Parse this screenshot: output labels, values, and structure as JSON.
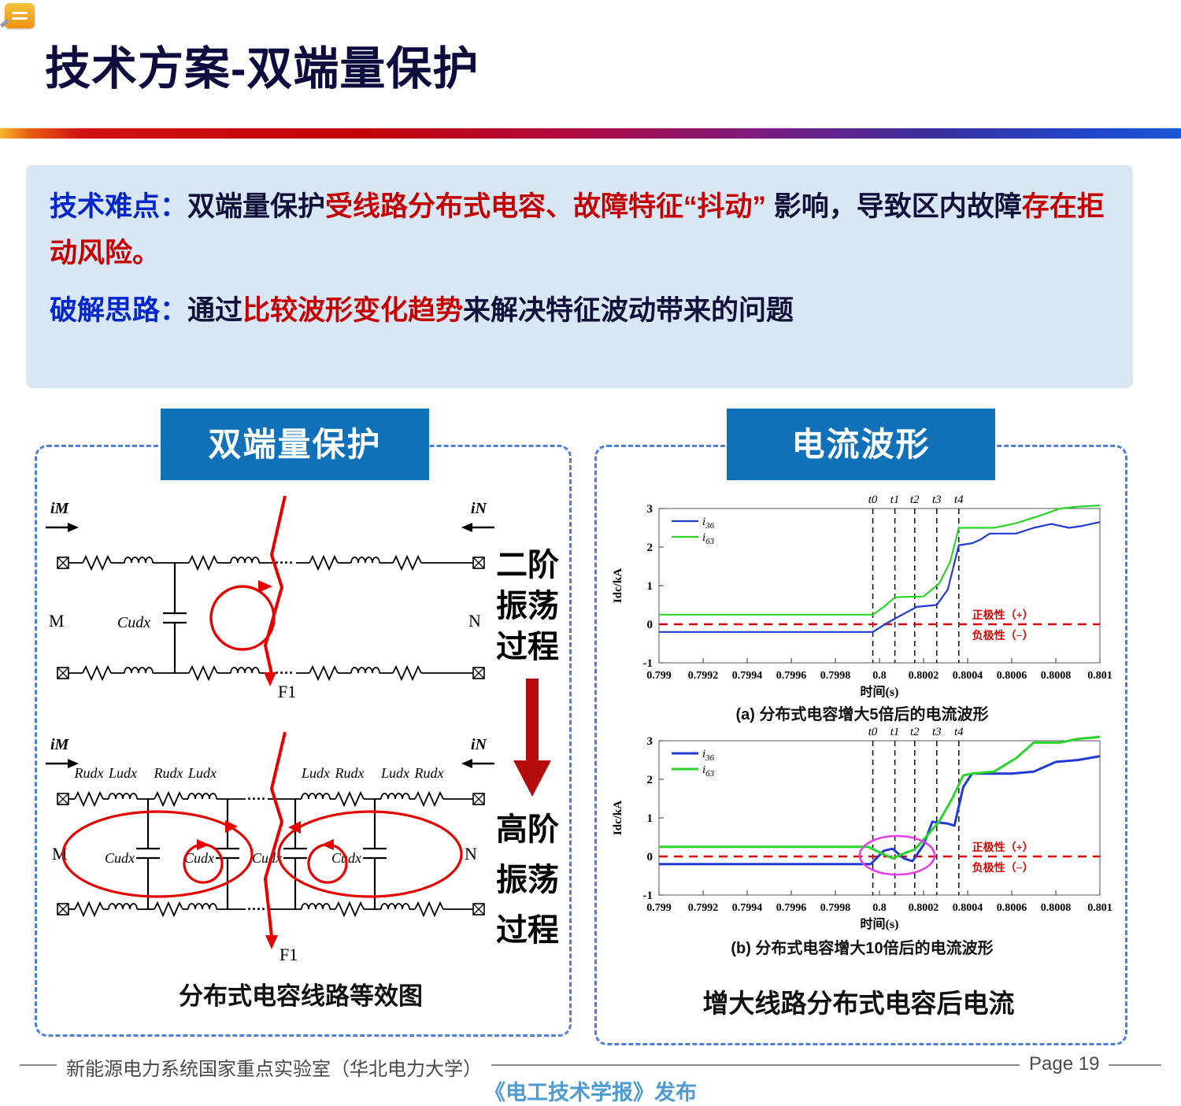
{
  "page": {
    "title": "技术方案-双端量保护",
    "footer": {
      "left": "新能源电力系统国家重点实验室（华北电力大学）",
      "right": "Page 19",
      "center": "《电工技术学报》发布"
    }
  },
  "summary": {
    "p1_label": "技术难点：",
    "p1_dark1": "双端量保护",
    "p1_red1": "受线路分布式电容、故障特征“抖动”",
    "p1_dark2": " 影响，导致区内故障",
    "p1_red2": "存在拒动风险。",
    "p2_label": "破解思路：",
    "p2_dark1": "通过",
    "p2_red1": "比较波形变化趋势",
    "p2_dark2": "来解决特征波动带来的问题"
  },
  "circuit_panel": {
    "header": "双端量保护",
    "caption": "分布式电容线路等效图",
    "stage1": [
      "二阶",
      "振荡",
      "过程"
    ],
    "stage2": [
      "高阶",
      "振荡",
      "过程"
    ],
    "labels": {
      "iM": "iM",
      "iN": "iN",
      "M": "M",
      "N": "N",
      "Cudx": "Cudx",
      "Rudx": "Rudx",
      "Ludx": "Ludx",
      "F1": "F1",
      "dots": "····"
    }
  },
  "waveform_panel": {
    "header": "电流波形",
    "caption": "增大线路分布式电容后电流"
  },
  "chart_data": [
    {
      "type": "line",
      "caption": "(a) 分布式电容增大5倍后的电流波形",
      "xlabel": "时间(s)",
      "ylabel": "Idc/kA",
      "xlim": [
        0.799,
        0.801
      ],
      "ylim": [
        -1,
        3
      ],
      "xticks": [
        "0.799",
        "0.7992",
        "0.7994",
        "0.7996",
        "0.7998",
        "0.8",
        "0.8002",
        "0.8004",
        "0.8006",
        "0.8008",
        "0.801"
      ],
      "yticks": [
        "-1",
        "0",
        "1",
        "2",
        "3"
      ],
      "t_labels": [
        "t0",
        "t1",
        "t2",
        "t3",
        "t4"
      ],
      "t_x": [
        0.79997,
        0.80007,
        0.80016,
        0.80026,
        0.80036
      ],
      "zero_label_pos": "正极性（+）",
      "zero_label_neg": "负极性（−）",
      "zero_label_x": 0.80042,
      "line_width": 2.2,
      "legend_position": "top-left",
      "grid": false,
      "series": [
        {
          "name": "i36",
          "color": "#1f3bd4",
          "points": [
            [
              0.799,
              -0.2
            ],
            [
              0.79997,
              -0.2
            ],
            [
              0.80004,
              0.05
            ],
            [
              0.80012,
              0.3
            ],
            [
              0.80017,
              0.45
            ],
            [
              0.80026,
              0.5
            ],
            [
              0.80031,
              0.9
            ],
            [
              0.80036,
              2.05
            ],
            [
              0.80042,
              2.1
            ],
            [
              0.80046,
              2.2
            ],
            [
              0.8005,
              2.35
            ],
            [
              0.80062,
              2.35
            ],
            [
              0.8007,
              2.5
            ],
            [
              0.80078,
              2.6
            ],
            [
              0.80086,
              2.5
            ],
            [
              0.80092,
              2.55
            ],
            [
              0.801,
              2.65
            ]
          ]
        },
        {
          "name": "i63",
          "color": "#2bd42b",
          "points": [
            [
              0.799,
              0.25
            ],
            [
              0.79997,
              0.25
            ],
            [
              0.80002,
              0.45
            ],
            [
              0.80007,
              0.7
            ],
            [
              0.8002,
              0.72
            ],
            [
              0.80027,
              1.05
            ],
            [
              0.80032,
              1.6
            ],
            [
              0.80036,
              2.5
            ],
            [
              0.80052,
              2.5
            ],
            [
              0.80062,
              2.62
            ],
            [
              0.80072,
              2.8
            ],
            [
              0.80082,
              3.0
            ],
            [
              0.8009,
              3.05
            ],
            [
              0.801,
              3.08
            ]
          ]
        }
      ]
    },
    {
      "type": "line",
      "caption": "(b) 分布式电容增大10倍后的电流波形",
      "xlabel": "时间(s)",
      "ylabel": "Idc/kA",
      "xlim": [
        0.799,
        0.801
      ],
      "ylim": [
        -1,
        3
      ],
      "xticks": [
        "0.799",
        "0.7992",
        "0.7994",
        "0.7996",
        "0.7998",
        "0.8",
        "0.8002",
        "0.8004",
        "0.8006",
        "0.8008",
        "0.801"
      ],
      "yticks": [
        "-1",
        "0",
        "1",
        "2",
        "3"
      ],
      "t_labels": [
        "t0",
        "t1",
        "t2",
        "t3",
        "t4"
      ],
      "t_x": [
        0.79997,
        0.80007,
        0.80016,
        0.80026,
        0.80036
      ],
      "zero_label_pos": "正极性（+）",
      "zero_label_neg": "负极性（−）",
      "zero_label_x": 0.80042,
      "line_width": 3,
      "legend_position": "top-left",
      "grid": false,
      "highlight_ellipse": {
        "cx": 0.80008,
        "cy": 0.03,
        "rx": 0.00017,
        "ry": 0.5,
        "color": "#e83ce8"
      },
      "series": [
        {
          "name": "i36",
          "color": "#1f3bd4",
          "points": [
            [
              0.799,
              -0.2
            ],
            [
              0.79996,
              -0.2
            ],
            [
              0.80002,
              0.15
            ],
            [
              0.80006,
              0.2
            ],
            [
              0.80011,
              -0.05
            ],
            [
              0.80015,
              -0.12
            ],
            [
              0.8002,
              0.3
            ],
            [
              0.80024,
              0.9
            ],
            [
              0.80031,
              0.85
            ],
            [
              0.80034,
              0.8
            ],
            [
              0.80038,
              1.8
            ],
            [
              0.80042,
              2.15
            ],
            [
              0.8006,
              2.15
            ],
            [
              0.8007,
              2.2
            ],
            [
              0.8008,
              2.45
            ],
            [
              0.8009,
              2.5
            ],
            [
              0.801,
              2.6
            ]
          ]
        },
        {
          "name": "i63",
          "color": "#2bd42b",
          "points": [
            [
              0.799,
              0.25
            ],
            [
              0.79995,
              0.25
            ],
            [
              0.80001,
              0.08
            ],
            [
              0.80006,
              -0.05
            ],
            [
              0.80012,
              0.1
            ],
            [
              0.80016,
              0.18
            ],
            [
              0.80021,
              0.5
            ],
            [
              0.80027,
              0.9
            ],
            [
              0.80033,
              1.5
            ],
            [
              0.80038,
              2.1
            ],
            [
              0.80042,
              2.15
            ],
            [
              0.80052,
              2.2
            ],
            [
              0.80062,
              2.55
            ],
            [
              0.8007,
              2.95
            ],
            [
              0.80082,
              2.95
            ],
            [
              0.8009,
              3.05
            ],
            [
              0.801,
              3.1
            ]
          ]
        }
      ]
    }
  ]
}
